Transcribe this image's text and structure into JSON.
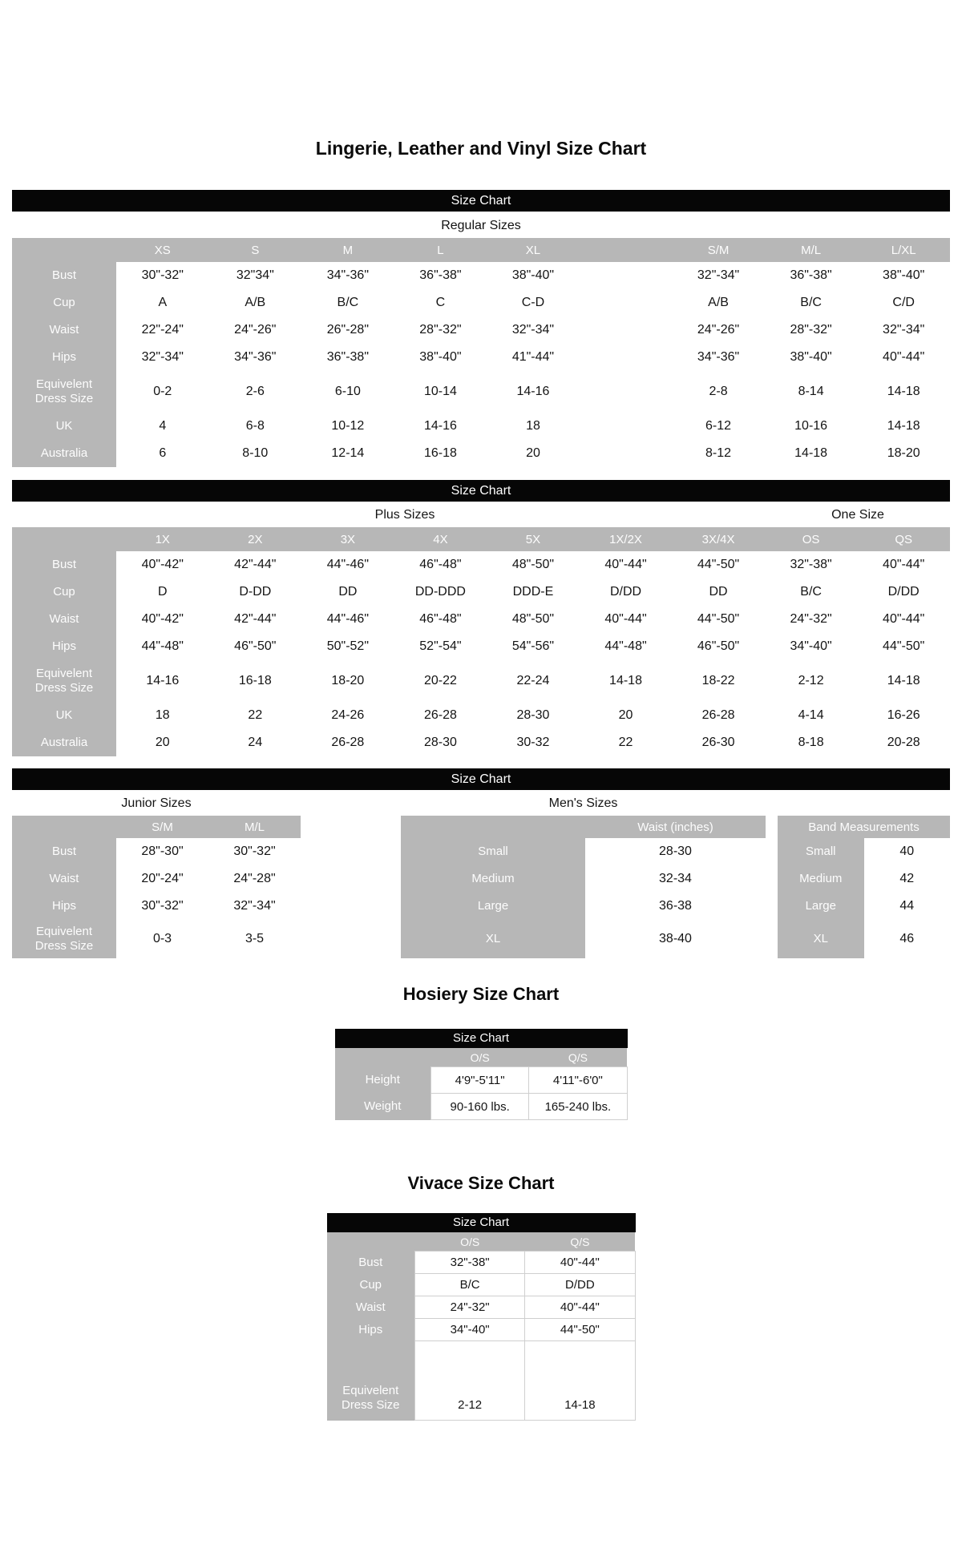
{
  "title": "Lingerie, Leather and Vinyl Size Chart",
  "size_chart_bar": "Size Chart",
  "colors": {
    "gray": "#b7b7b7",
    "bar_black": "#060606",
    "text": "#141414",
    "label_text": "#fdfdfd"
  },
  "regular": {
    "heading": "Regular Sizes",
    "columns": [
      "XS",
      "S",
      "M",
      "L",
      "XL",
      "",
      "S/M",
      "M/L",
      "L/XL"
    ],
    "rows": [
      {
        "label": "Bust",
        "values": [
          "30\"-32\"",
          "32\"34\"",
          "34\"-36\"",
          "36\"-38\"",
          "38\"-40\"",
          "",
          "32\"-34\"",
          "36\"-38\"",
          "38\"-40\""
        ]
      },
      {
        "label": "Cup",
        "values": [
          "A",
          "A/B",
          "B/C",
          "C",
          "C-D",
          "",
          "A/B",
          "B/C",
          "C/D"
        ]
      },
      {
        "label": "Waist",
        "values": [
          "22\"-24\"",
          "24\"-26\"",
          "26\"-28\"",
          "28\"-32\"",
          "32\"-34\"",
          "",
          "24\"-26\"",
          "28\"-32\"",
          "32\"-34\""
        ]
      },
      {
        "label": "Hips",
        "values": [
          "32\"-34\"",
          "34\"-36\"",
          "36\"-38\"",
          "38\"-40\"",
          "41\"-44\"",
          "",
          "34\"-36\"",
          "38\"-40\"",
          "40\"-44\""
        ]
      },
      {
        "label": "Equivelent\nDress Size",
        "values": [
          "0-2",
          "2-6",
          "6-10",
          "10-14",
          "14-16",
          "",
          "2-8",
          "8-14",
          "14-18"
        ]
      },
      {
        "label": "UK",
        "values": [
          "4",
          "6-8",
          "10-12",
          "14-16",
          "18",
          "",
          "6-12",
          "10-16",
          "14-18"
        ]
      },
      {
        "label": "Australia",
        "values": [
          "6",
          "8-10",
          "12-14",
          "16-18",
          "20",
          "",
          "8-12",
          "14-18",
          "18-20"
        ]
      }
    ]
  },
  "plus": {
    "heading_left": "Plus Sizes",
    "heading_right": "One Size",
    "columns": [
      "1X",
      "2X",
      "3X",
      "4X",
      "5X",
      "1X/2X",
      "3X/4X",
      "OS",
      "QS"
    ],
    "rows": [
      {
        "label": "Bust",
        "values": [
          "40\"-42\"",
          "42\"-44\"",
          "44\"-46\"",
          "46\"-48\"",
          "48\"-50\"",
          "40\"-44\"",
          "44\"-50\"",
          "32\"-38\"",
          "40\"-44\""
        ]
      },
      {
        "label": "Cup",
        "values": [
          "D",
          "D-DD",
          "DD",
          "DD-DDD",
          "DDD-E",
          "D/DD",
          "DD",
          "B/C",
          "D/DD"
        ]
      },
      {
        "label": "Waist",
        "values": [
          "40\"-42\"",
          "42\"-44\"",
          "44\"-46\"",
          "46\"-48\"",
          "48\"-50\"",
          "40\"-44\"",
          "44\"-50\"",
          "24\"-32\"",
          "40\"-44\""
        ]
      },
      {
        "label": "Hips",
        "values": [
          "44\"-48\"",
          "46\"-50\"",
          "50\"-52\"",
          "52\"-54\"",
          "54\"-56\"",
          "44\"-48\"",
          "46\"-50\"",
          "34\"-40\"",
          "44\"-50\""
        ]
      },
      {
        "label": "Equivelent\nDress Size",
        "values": [
          "14-16",
          "16-18",
          "18-20",
          "20-22",
          "22-24",
          "14-18",
          "18-22",
          "2-12",
          "14-18"
        ]
      },
      {
        "label": "UK",
        "values": [
          "18",
          "22",
          "24-26",
          "26-28",
          "28-30",
          "20",
          "26-28",
          "4-14",
          "16-26"
        ]
      },
      {
        "label": "Australia",
        "values": [
          "20",
          "24",
          "26-28",
          "28-30",
          "30-32",
          "22",
          "26-30",
          "8-18",
          "20-28"
        ]
      }
    ]
  },
  "junior": {
    "heading": "Junior Sizes",
    "columns": [
      "S/M",
      "M/L"
    ],
    "rows": [
      {
        "label": "Bust",
        "values": [
          "28\"-30\"",
          "30\"-32\""
        ]
      },
      {
        "label": "Waist",
        "values": [
          "20\"-24\"",
          "24\"-28\""
        ]
      },
      {
        "label": "Hips",
        "values": [
          "30\"-32\"",
          "32\"-34\""
        ]
      },
      {
        "label": "Equivelent\nDress Size",
        "values": [
          "0-3",
          "3-5"
        ]
      }
    ]
  },
  "mens": {
    "heading": "Men's Sizes",
    "waist_table": {
      "header": "Waist (inches)",
      "header_span": false,
      "rows": [
        {
          "label": "Small",
          "values": [
            "28-30"
          ]
        },
        {
          "label": "Medium",
          "values": [
            "32-34"
          ]
        },
        {
          "label": "Large",
          "values": [
            "36-38"
          ]
        },
        {
          "label": "XL",
          "values": [
            "38-40"
          ],
          "tall": true
        }
      ]
    },
    "band_table": {
      "header": "Band Measurements",
      "header_span": true,
      "rows": [
        {
          "label": "Small",
          "values": [
            "40"
          ]
        },
        {
          "label": "Medium",
          "values": [
            "42"
          ]
        },
        {
          "label": "Large",
          "values": [
            "44"
          ]
        },
        {
          "label": "XL",
          "values": [
            "46"
          ],
          "tall": true
        }
      ]
    }
  },
  "hosiery": {
    "title": "Hosiery Size Chart",
    "bar": "Size Chart",
    "columns": [
      "O/S",
      "Q/S"
    ],
    "rows": [
      {
        "label": "Height",
        "values": [
          "4'9\"-5'11\"",
          "4'11\"-6'0\""
        ]
      },
      {
        "label": "Weight",
        "values": [
          "90-160 lbs.",
          "165-240 lbs."
        ]
      }
    ]
  },
  "vivace": {
    "title": "Vivace Size Chart",
    "bar": "Size Chart",
    "columns": [
      "O/S",
      "Q/S"
    ],
    "rows": [
      {
        "label": "Bust",
        "values": [
          "32\"-38\"",
          "40\"-44\""
        ]
      },
      {
        "label": "Cup",
        "values": [
          "B/C",
          "D/DD"
        ]
      },
      {
        "label": "Waist",
        "values": [
          "24\"-32\"",
          "40\"-44\""
        ]
      },
      {
        "label": "Hips",
        "values": [
          "34\"-40\"",
          "44\"-50\""
        ]
      },
      {
        "label": "Equivelent\nDress Size",
        "values": [
          "2-12",
          "14-18"
        ],
        "tall": true
      }
    ]
  }
}
